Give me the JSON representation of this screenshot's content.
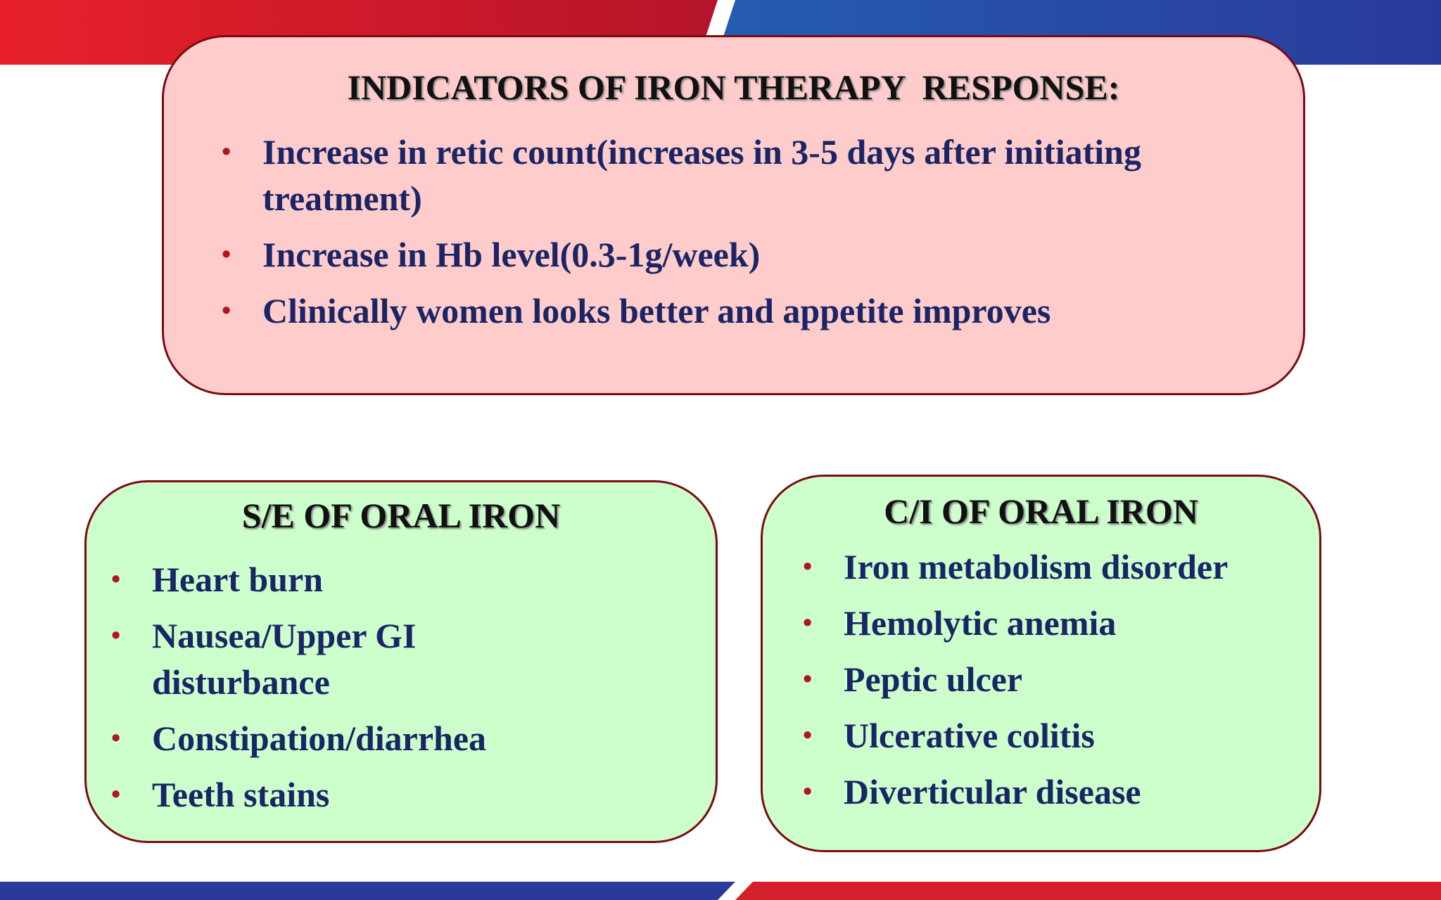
{
  "top_box": {
    "title": "INDICATORS OF IRON THERAPY  RESPONSE:",
    "items": [
      "Increase in retic count(increases in 3-5 days after initiating treatment)",
      "Increase in Hb level(0.3-1g/week)",
      "Clinically women looks better and appetite improves"
    ]
  },
  "left_box": {
    "title": "S/E OF ORAL IRON",
    "items": [
      "Heart burn",
      "Nausea/Upper GI disturbance",
      "Constipation/diarrhea",
      "Teeth stains"
    ]
  },
  "right_box": {
    "title": "C/I OF ORAL IRON",
    "items": [
      "Iron metabolism disorder",
      "Hemolytic anemia",
      "Peptic ulcer",
      "Ulcerative colitis",
      "Diverticular disease"
    ]
  }
}
